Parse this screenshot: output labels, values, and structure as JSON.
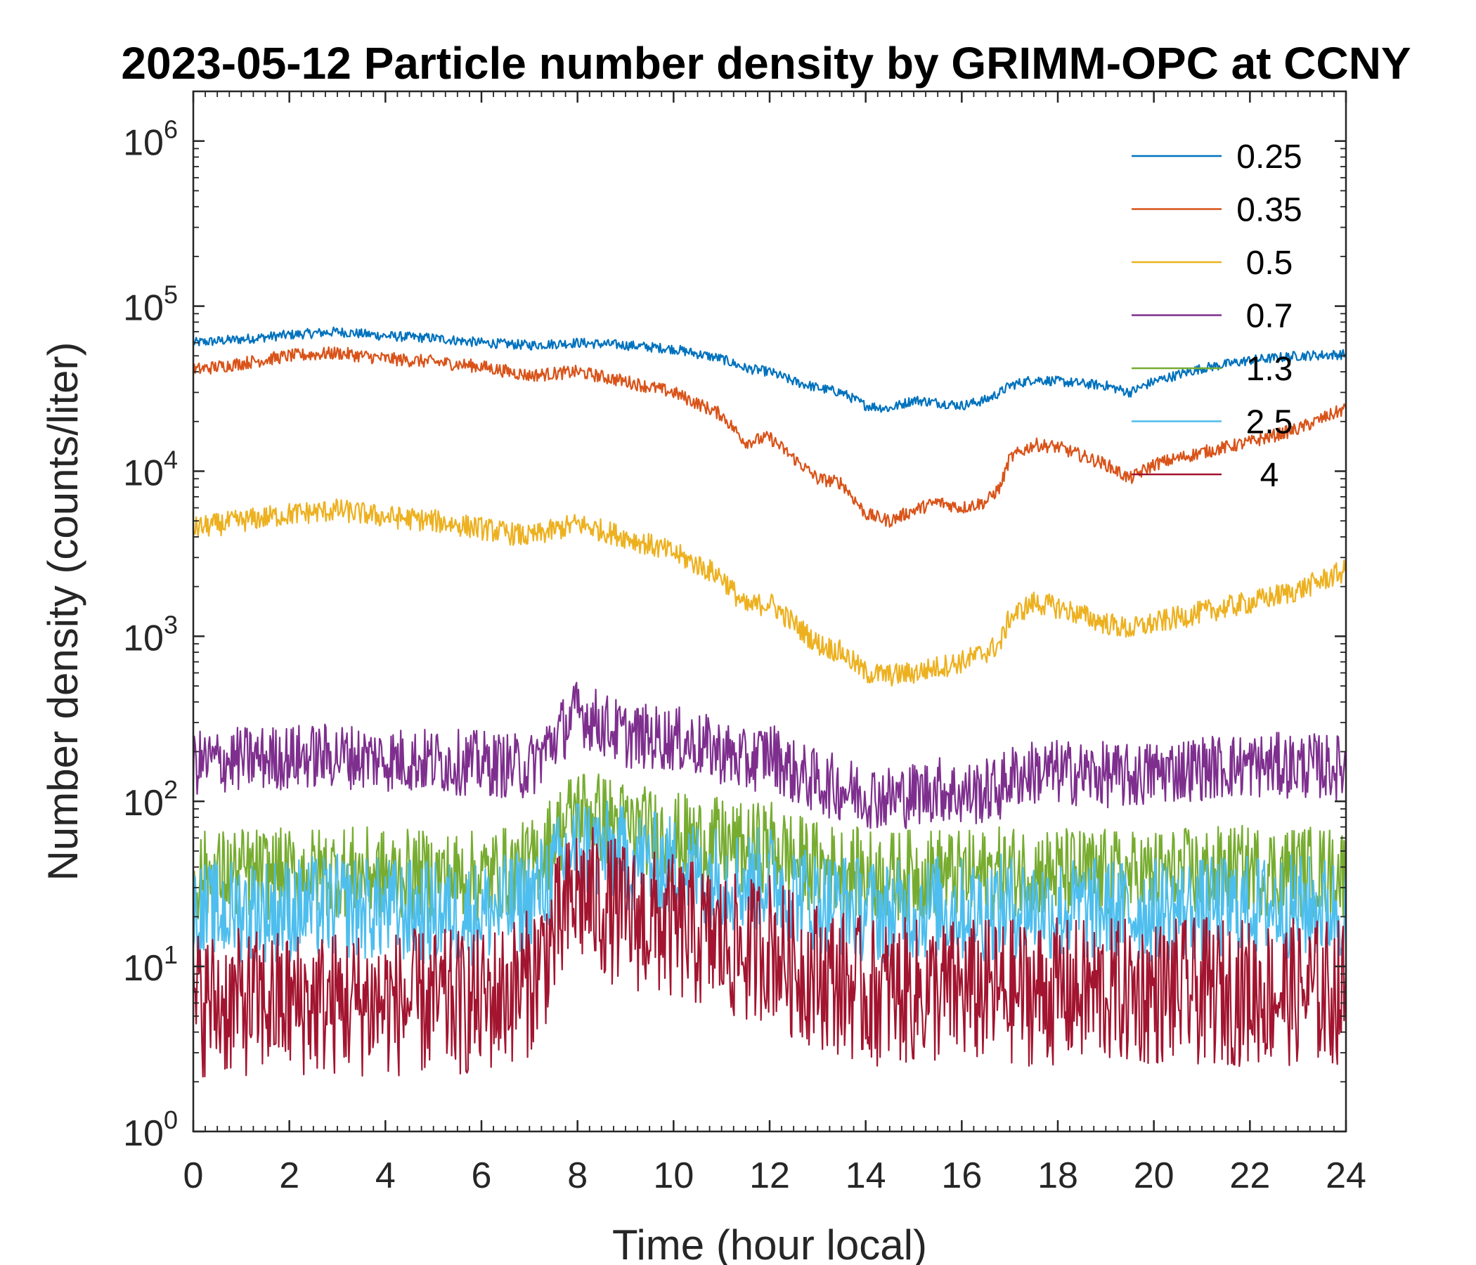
{
  "chart_data": {
    "type": "line",
    "title": "2023-05-12 Particle number density by GRIMM-OPC at CCNY",
    "xlabel": "Time (hour local)",
    "ylabel": "Number density (counts/liter)",
    "xlim": [
      0,
      24
    ],
    "ylim": [
      1,
      2000000
    ],
    "yscale": "log",
    "x_ticks": [
      0,
      2,
      4,
      6,
      8,
      10,
      12,
      14,
      16,
      18,
      20,
      22,
      24
    ],
    "x_tick_labels": [
      "0",
      "2",
      "4",
      "6",
      "8",
      "10",
      "12",
      "14",
      "16",
      "18",
      "20",
      "22",
      "24"
    ],
    "y_ticks": [
      1,
      10,
      100,
      1000,
      10000,
      100000,
      1000000
    ],
    "y_tick_exponents": [
      "0",
      "1",
      "2",
      "3",
      "4",
      "5",
      "6"
    ],
    "y_tick_base": "10",
    "legend_position": "top-right",
    "x": [
      0,
      1,
      2,
      3,
      4,
      5,
      6,
      7,
      8,
      9,
      10,
      11,
      11.5,
      12,
      12.5,
      13,
      13.5,
      14,
      14.5,
      15,
      15.5,
      16,
      16.5,
      16.8,
      17,
      17.5,
      18,
      19,
      19.5,
      20,
      21,
      22,
      23,
      24
    ],
    "series": [
      {
        "name": "0.25",
        "color": "#0072bd",
        "values": [
          60000,
          63000,
          67000,
          70000,
          66000,
          64000,
          60000,
          58000,
          60000,
          58000,
          55000,
          48000,
          42000,
          40000,
          35000,
          32000,
          30000,
          25000,
          24000,
          27000,
          26000,
          25000,
          27000,
          30000,
          33000,
          36000,
          35000,
          33000,
          30000,
          35000,
          42000,
          47000,
          50000,
          51000
        ]
      },
      {
        "name": "0.35",
        "color": "#d95319",
        "values": [
          41000,
          45000,
          50000,
          52000,
          48000,
          46000,
          43000,
          38000,
          40000,
          35000,
          30000,
          22000,
          15000,
          16000,
          12000,
          9000,
          8500,
          5500,
          5000,
          5800,
          6500,
          6000,
          6500,
          8000,
          12000,
          14500,
          14000,
          11000,
          9000,
          11000,
          13000,
          15000,
          18000,
          24000
        ]
      },
      {
        "name": "0.5",
        "color": "#edb120",
        "values": [
          4500,
          5000,
          5500,
          5800,
          5300,
          5000,
          4500,
          4000,
          4800,
          4000,
          3200,
          2300,
          1500,
          1600,
          1200,
          900,
          800,
          600,
          580,
          600,
          650,
          700,
          800,
          900,
          1300,
          1600,
          1500,
          1200,
          1100,
          1200,
          1400,
          1600,
          1900,
          2500
        ]
      },
      {
        "name": "0.7",
        "color": "#7e2f8e",
        "values": [
          170,
          180,
          185,
          190,
          180,
          175,
          170,
          160,
          350,
          250,
          240,
          200,
          170,
          200,
          150,
          130,
          120,
          110,
          105,
          110,
          120,
          110,
          115,
          120,
          140,
          150,
          150,
          145,
          140,
          150,
          160,
          165,
          165,
          160
        ]
      },
      {
        "name": "1.3",
        "color": "#77ac30",
        "values": [
          35,
          37,
          36,
          38,
          36,
          35,
          35,
          40,
          90,
          70,
          60,
          55,
          50,
          55,
          45,
          40,
          38,
          36,
          35,
          36,
          37,
          35,
          36,
          37,
          38,
          38,
          37,
          36,
          35,
          36,
          37,
          38,
          38,
          37
        ]
      },
      {
        "name": "2.5",
        "color": "#4dbeee",
        "values": [
          20,
          22,
          22,
          23,
          22,
          21,
          21,
          25,
          55,
          45,
          40,
          35,
          32,
          35,
          28,
          25,
          24,
          22,
          21,
          22,
          23,
          22,
          22,
          23,
          23,
          23,
          22,
          22,
          21,
          22,
          22,
          23,
          23,
          22
        ]
      },
      {
        "name": "4",
        "color": "#a2142f",
        "values": [
          6,
          6,
          6,
          6,
          6,
          6,
          6,
          8,
          28,
          20,
          17,
          14,
          12,
          14,
          10,
          9,
          8,
          7,
          7,
          7,
          7,
          7,
          7,
          7,
          7,
          7,
          7,
          7,
          7,
          7,
          7,
          7,
          7,
          7
        ]
      }
    ]
  }
}
